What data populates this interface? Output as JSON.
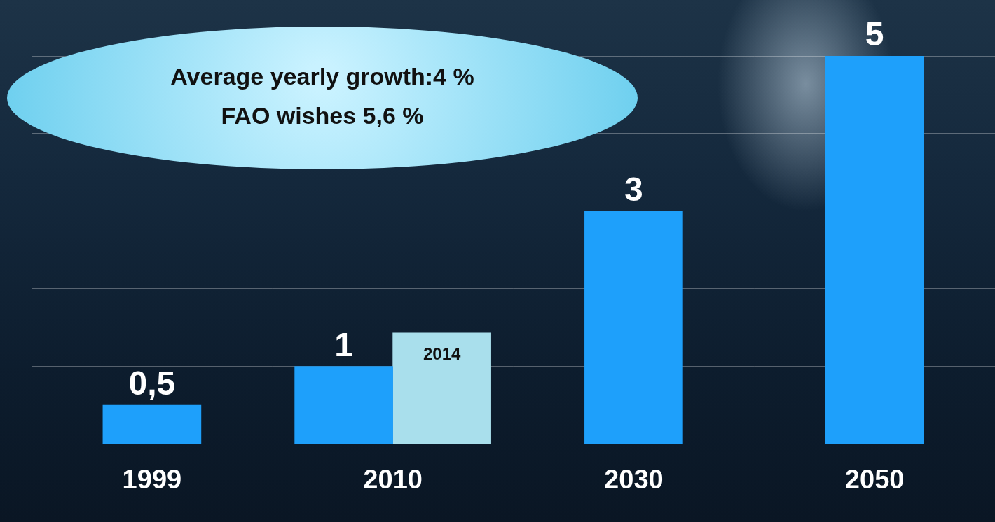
{
  "chart_data": {
    "type": "bar",
    "annotations": [
      "Average yearly growth:4 %",
      "FAO wishes 5,6 %"
    ],
    "categories": [
      "1999",
      "2010",
      "2030",
      "2050"
    ],
    "series": [
      {
        "color": "#1ea0fb",
        "values": [
          0.5,
          1,
          3,
          5
        ],
        "value_labels": [
          "0,5",
          "1",
          "3",
          "5"
        ]
      },
      {
        "name": "2014",
        "color": "#a9dfec",
        "values": [
          null,
          1.43,
          null,
          null
        ]
      }
    ],
    "ylim": [
      0,
      5
    ],
    "yticks": [
      0,
      1,
      2,
      3,
      4,
      5
    ],
    "grid": true,
    "data_labels": true,
    "tick_labels": "x"
  }
}
